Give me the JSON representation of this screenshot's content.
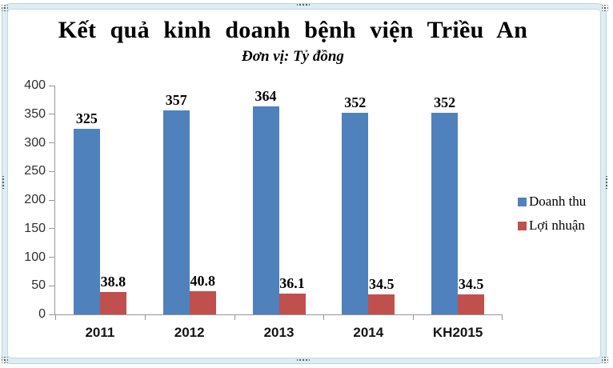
{
  "chart_data": {
    "type": "bar",
    "title": "Kết quả kinh doanh bệnh viện Triều An",
    "subtitle": "Đơn vị: Tỷ đồng",
    "categories": [
      "2011",
      "2012",
      "2013",
      "2014",
      "KH2015"
    ],
    "series": [
      {
        "name": "Doanh thu",
        "color": "#4F81BD",
        "values": [
          325,
          357,
          364,
          352,
          352
        ]
      },
      {
        "name": "Lợi nhuận",
        "color": "#C0504D",
        "values": [
          38.8,
          40.8,
          36.1,
          34.5,
          34.5
        ]
      }
    ],
    "ylim": [
      0,
      400
    ],
    "ytick_step": 50,
    "grid": false,
    "legend_position": "right",
    "axis_color": "#969696",
    "frame_color": "#DDEDF2"
  }
}
